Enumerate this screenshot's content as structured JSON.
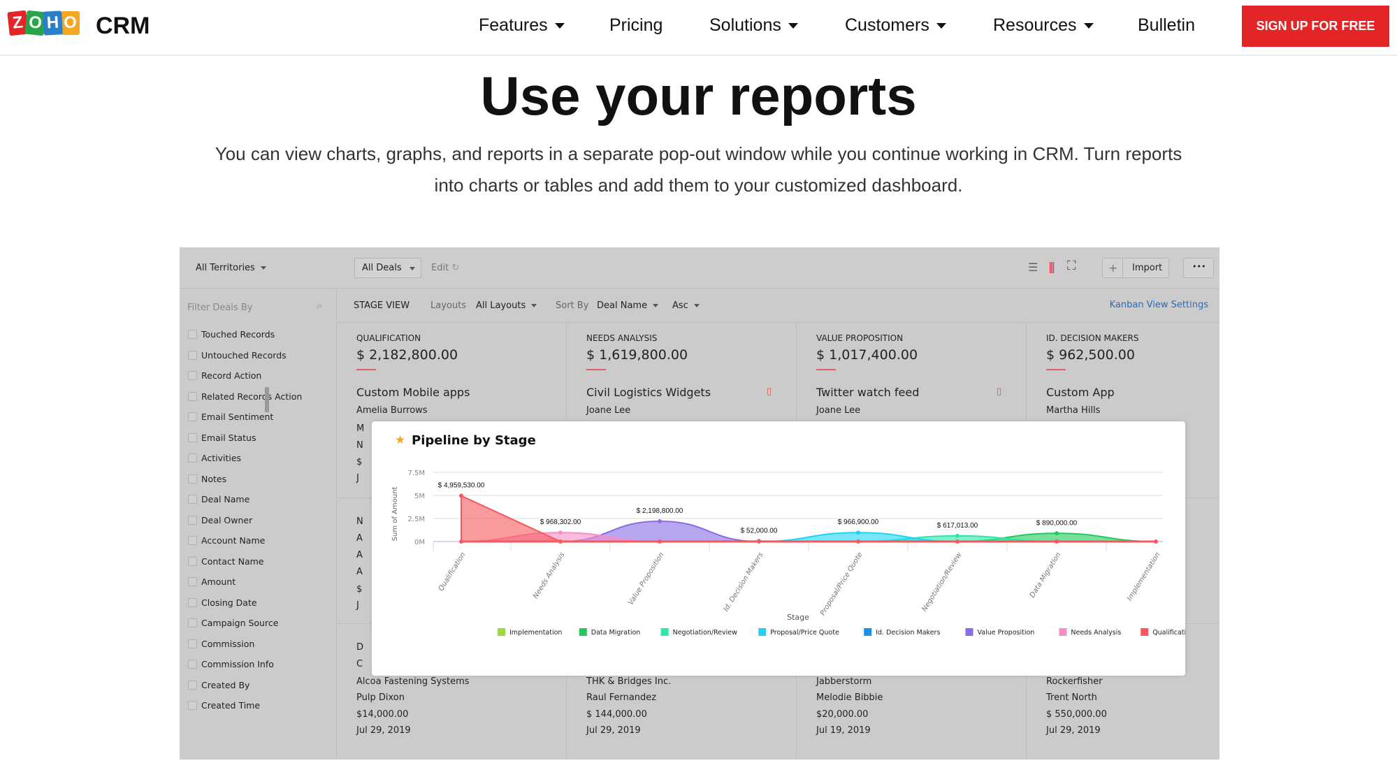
{
  "header": {
    "logo_text": "ZOHO",
    "product": "CRM",
    "nav": [
      {
        "label": "Features",
        "dropdown": true
      },
      {
        "label": "Pricing",
        "dropdown": false
      },
      {
        "label": "Solutions",
        "dropdown": true
      },
      {
        "label": "Customers",
        "dropdown": true
      },
      {
        "label": "Resources",
        "dropdown": true
      },
      {
        "label": "Bulletin",
        "dropdown": false
      }
    ],
    "cta": "SIGN UP FOR FREE",
    "cta_color": "#e42527"
  },
  "hero": {
    "title": "Use your reports",
    "line1": "You can view charts, graphs, and reports in a separate pop-out window while you continue working in CRM. Turn reports",
    "line2": "into charts or tables and add them to your customized dashboard."
  },
  "crm": {
    "topbar": {
      "territory": "All Territories",
      "view": "All Deals",
      "edit": "Edit",
      "import": "Import",
      "more": "•••",
      "plus": "+"
    },
    "toolbar": {
      "filter": "Filter Deals By",
      "stage_view": "STAGE VIEW",
      "layouts_label": "Layouts",
      "layouts_value": "All Layouts",
      "sort_label": "Sort By",
      "sort_value": "Deal Name",
      "order": "Asc",
      "settings": "Kanban View Settings"
    },
    "filters": [
      "Touched Records",
      "Untouched Records",
      "Record Action",
      "Related Records Action",
      "Email Sentiment",
      "Email Status",
      "Activities",
      "Notes",
      "Deal Name",
      "Deal Owner",
      "Account Name",
      "Contact Name",
      "Amount",
      "Closing Date",
      "Campaign Source",
      "Commission",
      "Commission Info",
      "Created By",
      "Created Time"
    ],
    "columns": [
      {
        "stage": "QUALIFICATION",
        "total": "$ 2,182,800.00",
        "deal": "Custom Mobile apps",
        "contact": "Amelia Burrows",
        "partial1": [
          "M",
          "N",
          "$",
          "J"
        ],
        "partial2": [
          "N",
          "A",
          "A",
          "A",
          "$",
          "J"
        ],
        "partial3": [
          "D",
          "C"
        ],
        "bottom": [
          "Alcoa Fastening Systems",
          "Pulp Dixon",
          "$14,000.00",
          "Jul 29, 2019"
        ]
      },
      {
        "stage": "NEEDS ANALYSIS",
        "total": "$ 1,619,800.00",
        "deal": "Civil Logistics Widgets",
        "contact": "Joane Lee",
        "bottom": [
          "THK & Bridges Inc.",
          "Raul Fernandez",
          "$ 144,000.00",
          "Jul 29, 2019"
        ]
      },
      {
        "stage": "VALUE PROPOSITION",
        "total": "$ 1,017,400.00",
        "deal": "Twitter watch feed",
        "contact": "Joane Lee",
        "bottom": [
          "Jabberstorm",
          "Melodie Bibbie",
          "$20,000.00",
          "Jul 19, 2019"
        ]
      },
      {
        "stage": "ID. DECISION MAKERS",
        "total": "$ 962,500.00",
        "deal": "Custom App",
        "contact": "Martha Hills",
        "bottom": [
          "Rockerfisher",
          "Trent North",
          "$ 550,000.00",
          "Jul 29, 2019"
        ]
      }
    ]
  },
  "chart_data": {
    "type": "area",
    "title": "Pipeline by Stage",
    "xlabel": "Stage",
    "ylabel": "Sum of Amount",
    "categories": [
      "Qualification",
      "Needs Analysis",
      "Value Proposition",
      "Id. Decision Makers",
      "Proposal/Price Quote",
      "Negotiation/Review",
      "Data Migration",
      "Implementation"
    ],
    "yticks": [
      "0M",
      "2.5M",
      "5M",
      "7.5M"
    ],
    "ylim": [
      0,
      7500000
    ],
    "grid": true,
    "legend_position": "bottom",
    "series": [
      {
        "name": "Implementation",
        "color": "#9ed849",
        "index": 7,
        "value": 0,
        "label": ""
      },
      {
        "name": "Data Migration",
        "color": "#1ecb5b",
        "index": 6,
        "value": 890000,
        "label": "$ 890,000.00"
      },
      {
        "name": "Negotiation/Review",
        "color": "#2ee6a8",
        "index": 5,
        "value": 617013,
        "label": "$ 617,013.00"
      },
      {
        "name": "Proposal/Price Quote",
        "color": "#1fd3f5",
        "index": 4,
        "value": 966900,
        "label": "$ 966,900.00"
      },
      {
        "name": "Id. Decision Makers",
        "color": "#1e90e8",
        "index": 3,
        "value": 52000,
        "label": "$ 52,000.00"
      },
      {
        "name": "Value Proposition",
        "color": "#8a6be8",
        "index": 2,
        "value": 2198800,
        "label": "$ 2,198,800.00"
      },
      {
        "name": "Needs Analysis",
        "color": "#f78fc6",
        "index": 1,
        "value": 968302,
        "label": "$ 968,302.00"
      },
      {
        "name": "Qualification",
        "color": "#f7585e",
        "index": 0,
        "value": 4959530,
        "label": "$ 4,959,530.00"
      }
    ]
  }
}
